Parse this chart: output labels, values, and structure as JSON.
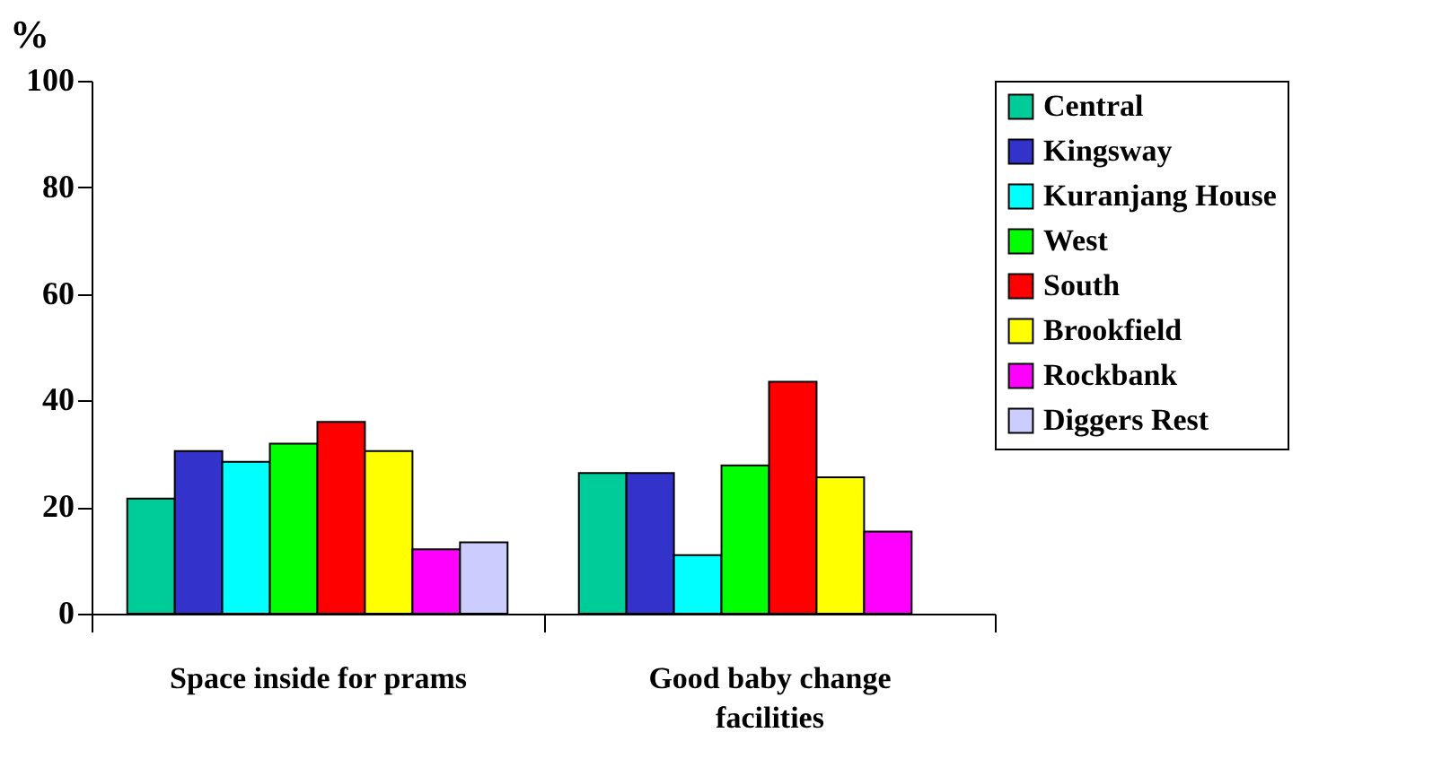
{
  "chart_data": {
    "type": "bar",
    "ylabel": "%",
    "categories": [
      "Space inside for prams",
      "Good baby change facilities"
    ],
    "series": [
      {
        "name": "Central",
        "color": "#00cc99",
        "values": [
          21.6,
          26.4
        ]
      },
      {
        "name": "Kingsway",
        "color": "#3333cc",
        "values": [
          30.5,
          26.4
        ]
      },
      {
        "name": "Kuranjang House",
        "color": "#00ffff",
        "values": [
          28.5,
          11
        ]
      },
      {
        "name": "West",
        "color": "#00ff00",
        "values": [
          31.9,
          27.8
        ]
      },
      {
        "name": "South",
        "color": "#ff0000",
        "values": [
          36,
          43.5
        ]
      },
      {
        "name": "Brookfield",
        "color": "#ffff00",
        "values": [
          30.5,
          25.6
        ]
      },
      {
        "name": "Rockbank",
        "color": "#ff00ff",
        "values": [
          12.1,
          15.4
        ]
      },
      {
        "name": "Diggers Rest",
        "color": "#ccccff",
        "values": [
          13.4,
          null
        ]
      }
    ],
    "ylim": [
      0,
      100
    ],
    "yticks": [
      0,
      20,
      40,
      60,
      80,
      100
    ],
    "grid": false,
    "legend": "right"
  }
}
